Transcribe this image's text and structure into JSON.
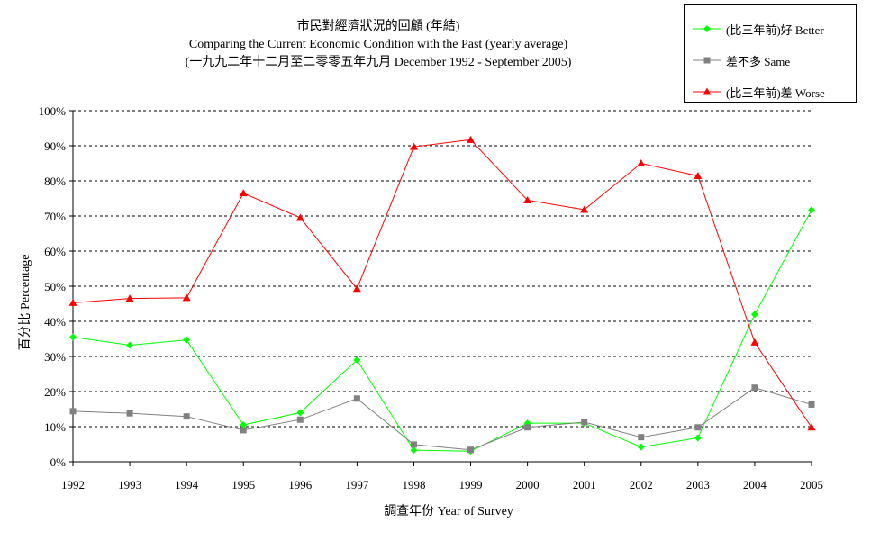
{
  "chart_data": {
    "type": "line",
    "title_lines": [
      "市民對經濟狀況的回顧 (年結)",
      "Comparing the Current Economic Condition with the Past  (yearly average)",
      "(一九九二年十二月至二零零五年九月 December 1992 - September 2005)"
    ],
    "xlabel": "調查年份 Year of Survey",
    "ylabel": "百分比 Percentage",
    "categories": [
      "1992",
      "1993",
      "1994",
      "1995",
      "1996",
      "1997",
      "1998",
      "1999",
      "2000",
      "2001",
      "2002",
      "2003",
      "2004",
      "2005"
    ],
    "ylim": [
      0,
      100
    ],
    "yticks": [
      "0%",
      "10%",
      "20%",
      "30%",
      "40%",
      "50%",
      "60%",
      "70%",
      "80%",
      "90%",
      "100%"
    ],
    "grid": true,
    "legend_position": "top-right",
    "series": [
      {
        "name": "(比三年前)好 Better",
        "color": "#00ff00",
        "marker": "diamond",
        "values": [
          35.5,
          33.2,
          34.7,
          10.5,
          14.0,
          29.0,
          3.3,
          3.0,
          11.0,
          11.0,
          4.2,
          6.8,
          42.0,
          71.7
        ]
      },
      {
        "name": "差不多 Same",
        "color": "#808080",
        "marker": "square",
        "values": [
          14.4,
          13.8,
          12.9,
          9.0,
          12.0,
          18.0,
          4.9,
          3.4,
          9.8,
          11.3,
          7.0,
          9.8,
          21.1,
          16.3
        ]
      },
      {
        "name": "(比三年前)差 Worse",
        "color": "#ff0000",
        "marker": "triangle",
        "values": [
          45.3,
          46.5,
          46.7,
          76.5,
          69.5,
          49.3,
          89.7,
          91.7,
          74.5,
          71.8,
          85.0,
          81.4,
          34.0,
          9.8
        ]
      }
    ]
  }
}
